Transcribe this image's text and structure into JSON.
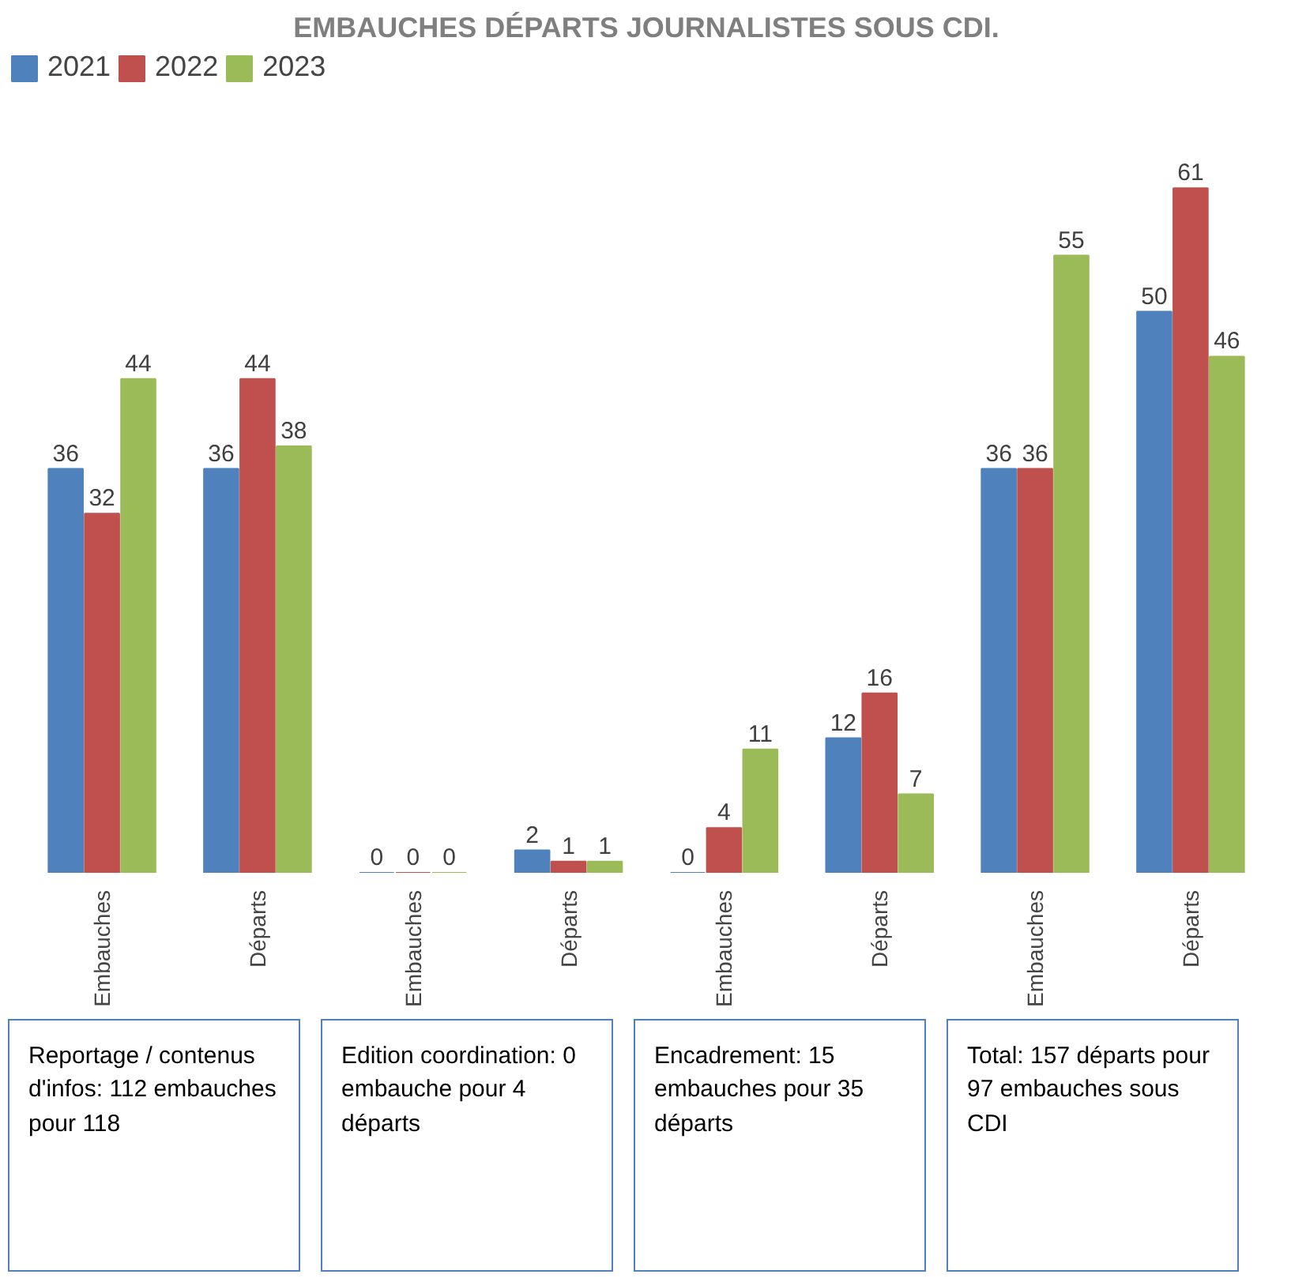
{
  "chart_data": {
    "type": "bar",
    "title": "EMBAUCHES DÉPARTS JOURNALISTES SOUS CDI.",
    "categories": [
      "Embauches",
      "Départs",
      "Embauches",
      "Départs",
      "Embauches",
      "Départs",
      "Embauches",
      "Départs"
    ],
    "series": [
      {
        "name": "2021",
        "color": "#4f81bd",
        "values": [
          36,
          36,
          0,
          2,
          0,
          12,
          36,
          50
        ]
      },
      {
        "name": "2022",
        "color": "#c0504d",
        "values": [
          32,
          44,
          0,
          1,
          4,
          16,
          36,
          61
        ]
      },
      {
        "name": "2023",
        "color": "#9bbb59",
        "values": [
          44,
          38,
          0,
          1,
          11,
          7,
          55,
          46
        ]
      }
    ],
    "data_labels": true,
    "legend": "top",
    "grid": false,
    "annotations": [
      "Reportage / contenus d'infos: 112 embauches pour 118",
      "Edition coordination: 0 embauche pour 4 départs",
      "Encadrement: 15 embauches pour 35 départs",
      "Total: 157 départs pour 97 embauches sous CDI"
    ]
  }
}
